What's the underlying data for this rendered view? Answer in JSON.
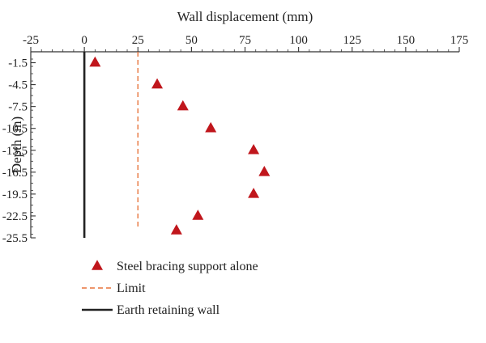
{
  "chart_data": {
    "type": "scatter",
    "title": "",
    "xlabel": "Wall displacement (mm)",
    "ylabel": "Depth (m)",
    "x_axis_position": "top",
    "xlim": [
      -25,
      175
    ],
    "ylim": [
      -25.5,
      0
    ],
    "x_ticks": [
      "-25",
      "0",
      "25",
      "50",
      "75",
      "100",
      "125",
      "150",
      "175"
    ],
    "y_ticks": [
      "-1.5",
      "-4.5",
      "-7.5",
      "-10.5",
      "-13.5",
      "-16.5",
      "-19.5",
      "-22.5",
      "-25.5"
    ],
    "grid": false,
    "legend_position": "bottom-left",
    "series": [
      {
        "name": "Steel bracing support alone",
        "kind": "scatter",
        "marker": "triangle",
        "color": "#c0161c",
        "points": [
          {
            "x": 5,
            "y": -1.5
          },
          {
            "x": 34,
            "y": -4.5
          },
          {
            "x": 46,
            "y": -7.5
          },
          {
            "x": 59,
            "y": -10.5
          },
          {
            "x": 79,
            "y": -13.5
          },
          {
            "x": 84,
            "y": -16.5
          },
          {
            "x": 79,
            "y": -19.5
          },
          {
            "x": 53,
            "y": -22.5
          },
          {
            "x": 43,
            "y": -24.5
          }
        ]
      },
      {
        "name": "Limit",
        "kind": "vline",
        "style": "dashed",
        "color": "#e8743b",
        "x": 25,
        "y_range": [
          0,
          -24
        ]
      },
      {
        "name": "Earth retaining wall",
        "kind": "vline",
        "style": "solid",
        "color": "#222222",
        "x": 0,
        "y_range": [
          0,
          -25.5
        ]
      }
    ]
  }
}
